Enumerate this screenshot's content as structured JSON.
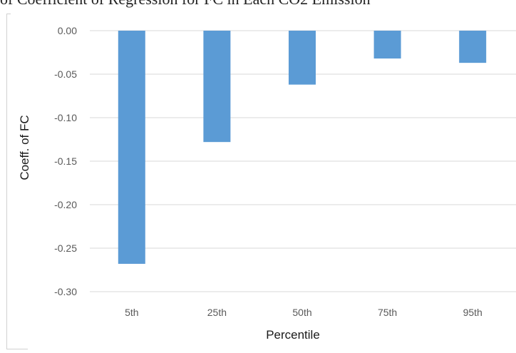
{
  "caption": "of Coefficient of Regression for FC in Each CO2 Emission",
  "chart_data": {
    "type": "bar",
    "title": "",
    "xlabel": "Percentile",
    "ylabel": "Coeff. of FC",
    "categories": [
      "5th",
      "25th",
      "50th",
      "75th",
      "95th"
    ],
    "series": [
      {
        "name": "",
        "values": [
          -0.268,
          -0.128,
          -0.062,
          -0.032,
          -0.037
        ]
      }
    ],
    "ylim": [
      -0.3,
      0.0
    ],
    "yticks": [
      "0.00",
      "-0.05",
      "-0.10",
      "-0.15",
      "-0.20",
      "-0.25",
      "-0.30"
    ],
    "grid": true,
    "legend": "none",
    "bar_color": "#5b9bd5",
    "grid_color": "#d9d9d9"
  }
}
